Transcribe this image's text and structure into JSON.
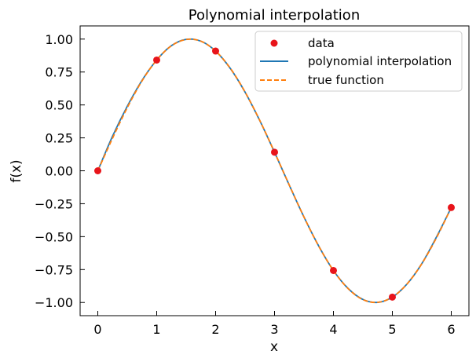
{
  "chart_data": {
    "type": "line",
    "title": "Polynomial interpolation",
    "xlabel": "x",
    "ylabel": "f(x)",
    "xlim": [
      -0.3,
      6.3
    ],
    "ylim": [
      -1.1,
      1.1
    ],
    "xticks": [
      0,
      1,
      2,
      3,
      4,
      5,
      6
    ],
    "xtick_labels": [
      "0",
      "1",
      "2",
      "3",
      "4",
      "5",
      "6"
    ],
    "yticks": [
      1.0,
      0.75,
      0.5,
      0.25,
      0.0,
      -0.25,
      -0.5,
      -0.75,
      -1.0
    ],
    "ytick_labels": [
      "1.00",
      "0.75",
      "0.50",
      "0.25",
      "0.00",
      "−0.25",
      "−0.50",
      "−0.75",
      "−1.00"
    ],
    "grid": false,
    "legend_position": "top-right",
    "series": [
      {
        "name": "data",
        "kind": "scatter",
        "color": "#e8141a",
        "x": [
          0,
          1,
          2,
          3,
          4,
          5,
          6
        ],
        "y": [
          0.0,
          0.841,
          0.909,
          0.141,
          -0.757,
          -0.959,
          -0.279
        ]
      },
      {
        "name": "polynomial interpolation",
        "kind": "line",
        "color": "#1f77b4",
        "x": [
          0,
          0.25,
          0.5,
          0.75,
          1,
          1.25,
          1.5,
          1.75,
          2,
          2.25,
          2.5,
          2.75,
          3,
          3.25,
          3.5,
          3.75,
          4,
          4.25,
          4.5,
          4.75,
          5,
          5.25,
          5.5,
          5.75,
          6
        ],
        "y": [
          0.0,
          0.262,
          0.489,
          0.686,
          0.841,
          0.95,
          0.998,
          0.984,
          0.909,
          0.777,
          0.597,
          0.381,
          0.141,
          -0.109,
          -0.351,
          -0.571,
          -0.757,
          -0.894,
          -0.977,
          -0.999,
          -0.959,
          -0.859,
          -0.705,
          -0.502,
          -0.279
        ]
      },
      {
        "name": "true function",
        "kind": "dashed-line",
        "color": "#ff7f0e",
        "x": [
          0,
          0.25,
          0.5,
          0.75,
          1,
          1.25,
          1.5,
          1.75,
          2,
          2.25,
          2.5,
          2.75,
          3,
          3.25,
          3.5,
          3.75,
          4,
          4.25,
          4.5,
          4.75,
          5,
          5.25,
          5.5,
          5.75,
          6
        ],
        "y": [
          0.0,
          0.247,
          0.479,
          0.682,
          0.841,
          0.949,
          0.997,
          0.984,
          0.909,
          0.778,
          0.598,
          0.382,
          0.141,
          -0.108,
          -0.351,
          -0.572,
          -0.757,
          -0.895,
          -0.978,
          -0.999,
          -0.959,
          -0.859,
          -0.706,
          -0.508,
          -0.279
        ]
      }
    ]
  }
}
